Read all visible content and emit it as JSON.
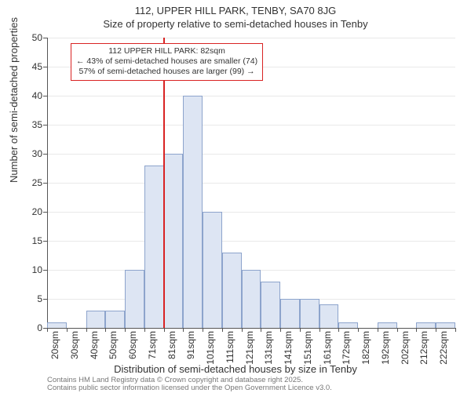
{
  "title": {
    "line1": "112, UPPER HILL PARK, TENBY, SA70 8JG",
    "line2": "Size of property relative to semi-detached houses in Tenby"
  },
  "histogram": {
    "type": "histogram",
    "bar_fill": "#dde5f3",
    "bar_stroke": "#8da4cc",
    "bar_stroke_width": 1,
    "bar_gap_ratio": 0.0,
    "background_color": "#ffffff",
    "grid_color": "#e9e9e9",
    "axis_color": "#555555",
    "categories": [
      "20sqm",
      "30sqm",
      "40sqm",
      "50sqm",
      "60sqm",
      "71sqm",
      "81sqm",
      "91sqm",
      "101sqm",
      "111sqm",
      "121sqm",
      "131sqm",
      "141sqm",
      "151sqm",
      "161sqm",
      "172sqm",
      "182sqm",
      "192sqm",
      "202sqm",
      "212sqm",
      "222sqm"
    ],
    "values": [
      1,
      0,
      3,
      3,
      10,
      28,
      30,
      40,
      20,
      13,
      10,
      8,
      5,
      5,
      4,
      1,
      0,
      1,
      0,
      1,
      1
    ],
    "ylim": [
      0,
      50
    ],
    "ytick_step": 5,
    "yticks": [
      0,
      5,
      10,
      15,
      20,
      25,
      30,
      35,
      40,
      45,
      50
    ],
    "ylabel": "Number of semi-detached properties",
    "xlabel": "Distribution of semi-detached houses by size in Tenby",
    "label_fontsize": 13,
    "tick_fontsize": 12,
    "title_fontsize": 13
  },
  "callout": {
    "line_color": "#d92323",
    "box_border_color": "#d92323",
    "box_bg": "#ffffff",
    "position_category_index": 6,
    "line1": "112 UPPER HILL PARK: 82sqm",
    "line2": "← 43% of semi-detached houses are smaller (74)",
    "line3": "57% of semi-detached houses are larger (99) →",
    "box_fontsize": 10.5
  },
  "footer": {
    "line1": "Contains HM Land Registry data © Crown copyright and database right 2025.",
    "line2": "Contains public sector information licensed under the Open Government Licence v3.0.",
    "color": "#777777",
    "fontsize": 9.5
  }
}
